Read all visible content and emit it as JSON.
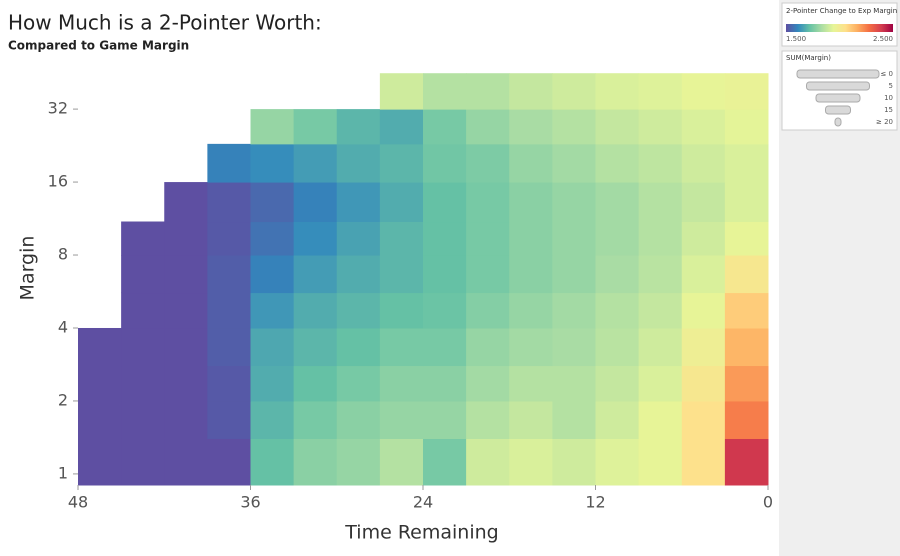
{
  "chart_data": {
    "type": "heatmap",
    "title": "How Much is a 2-Pointer Worth:",
    "subtitle": "Compared to Game Margin",
    "x_label": "Time Remaining",
    "y_label": "Margin",
    "x_bins": [
      48,
      45,
      42,
      39,
      36,
      33,
      30,
      27,
      24,
      21,
      18,
      15,
      12,
      9,
      6,
      3,
      0
    ],
    "y_bins": [
      0.9,
      1.4,
      2,
      2.8,
      4,
      5.6,
      8,
      11,
      16,
      23,
      32,
      45
    ],
    "values": [
      [
        1.5,
        1.5,
        1.5,
        1.5,
        1.72,
        1.78,
        1.8,
        1.85,
        1.75,
        1.9,
        1.92,
        1.9,
        1.93,
        1.95,
        2.05,
        2.4
      ],
      [
        1.5,
        1.5,
        1.5,
        1.52,
        1.7,
        1.75,
        1.78,
        1.8,
        1.8,
        1.85,
        1.88,
        1.85,
        1.9,
        1.95,
        2.05,
        2.25
      ],
      [
        1.5,
        1.5,
        1.5,
        1.52,
        1.68,
        1.72,
        1.75,
        1.78,
        1.78,
        1.82,
        1.85,
        1.85,
        1.88,
        1.92,
        2.02,
        2.2
      ],
      [
        1.5,
        1.5,
        1.5,
        1.53,
        1.67,
        1.7,
        1.72,
        1.75,
        1.75,
        1.8,
        1.82,
        1.83,
        1.86,
        1.9,
        1.98,
        2.15
      ],
      [
        null,
        1.5,
        1.5,
        1.53,
        1.64,
        1.68,
        1.7,
        1.72,
        1.73,
        1.77,
        1.8,
        1.82,
        1.85,
        1.88,
        1.95,
        2.1
      ],
      [
        null,
        1.5,
        1.5,
        1.53,
        1.6,
        1.65,
        1.68,
        1.7,
        1.72,
        1.75,
        1.78,
        1.8,
        1.83,
        1.86,
        1.92,
        2.02
      ],
      [
        null,
        1.5,
        1.5,
        1.52,
        1.57,
        1.62,
        1.66,
        1.7,
        1.72,
        1.75,
        1.78,
        1.8,
        1.82,
        1.85,
        1.9,
        1.95
      ],
      [
        null,
        null,
        1.5,
        1.52,
        1.55,
        1.6,
        1.64,
        1.68,
        1.72,
        1.75,
        1.78,
        1.8,
        1.82,
        1.85,
        1.88,
        1.92
      ],
      [
        null,
        null,
        null,
        1.6,
        1.62,
        1.65,
        1.68,
        1.7,
        1.74,
        1.76,
        1.8,
        1.82,
        1.85,
        1.87,
        1.9,
        1.92
      ],
      [
        null,
        null,
        null,
        null,
        1.8,
        1.75,
        1.7,
        1.68,
        1.75,
        1.8,
        1.83,
        1.85,
        1.88,
        1.9,
        1.92,
        1.94
      ],
      [
        null,
        null,
        null,
        null,
        null,
        null,
        null,
        1.9,
        1.85,
        1.85,
        1.88,
        1.9,
        1.92,
        1.93,
        1.95,
        1.96
      ]
    ],
    "xlim": [
      48,
      0
    ],
    "xticks": [
      48,
      36,
      24,
      12,
      0
    ],
    "ylim": [
      0.9,
      52
    ],
    "yticks": [
      1,
      2,
      4,
      8,
      16,
      32
    ],
    "log_y": true,
    "colorscale": [
      "#5e4fa2",
      "#3288bd",
      "#66c2a5",
      "#abdda4",
      "#e6f598",
      "#fee08b",
      "#fdae61",
      "#f46d43",
      "#d53e4f",
      "#9e0142"
    ],
    "color_legend": {
      "title": "2-Pointer Change to Exp Margin",
      "ticks": [
        {
          "value": 1.5,
          "label": "1.500"
        },
        {
          "value": 2.5,
          "label": "2.500"
        }
      ]
    },
    "size_legend": {
      "title": "SUM(Margin)",
      "entries": [
        {
          "value": 0,
          "label": "≤ 0"
        },
        5,
        10,
        15,
        {
          "value": 20,
          "label": "≥ 20"
        }
      ]
    }
  }
}
